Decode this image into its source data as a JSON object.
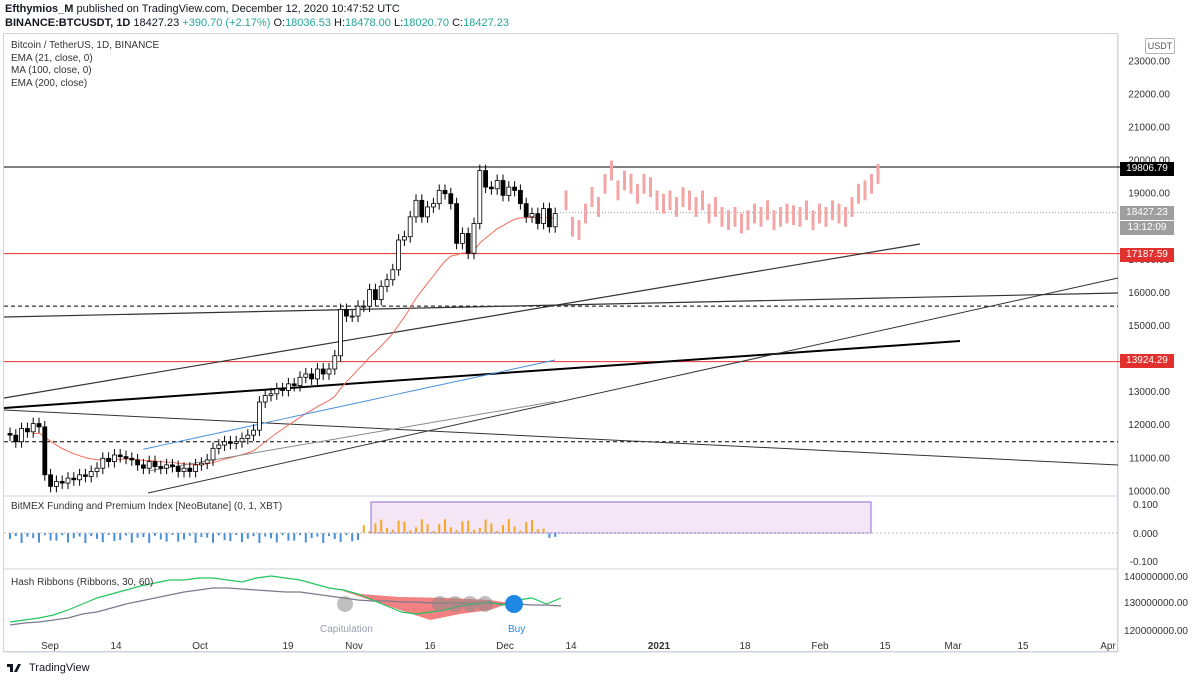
{
  "header": {
    "line1_user": "Efthymios_M",
    "line1_rest": " published on TradingView.com, December 12, 2020 10:47:52 UTC",
    "line2_symbol": "BINANCE:BTCUSDT, 1D",
    "line2_price": "18427.23",
    "line2_change": "+390.70 (+2.17%)",
    "o_label": "O:",
    "o": "18036.53",
    "h_label": "H:",
    "h": "18478.00",
    "l_label": "L:",
    "l": "18020.70",
    "c_label": "C:",
    "c": "18427.23"
  },
  "legend": {
    "title": "Bitcoin / TetherUS, 1D, BINANCE",
    "ema21": "EMA (21, close, 0)",
    "ma100": "MA (100, close, 0)",
    "ema200": "EMA (200, close)"
  },
  "currency": "USDT",
  "price_tags": {
    "resistance": "19806.79",
    "last": "18427.23",
    "countdown": "13:12:09",
    "red_upper": "17187.59",
    "red_lower": "13924.29"
  },
  "panes": {
    "bitmex": "BitMEX Funding and Premium Index [NeoButane] (0, 1, XBT)",
    "hash": "Hash Ribbons (Ribbons, 30, 60)",
    "capitulation": "Capitulation",
    "buy": "Buy"
  },
  "footer": {
    "brand": "TradingView"
  },
  "colors": {
    "up": "#ffffff",
    "down": "#000000",
    "projection": "#f4a6a6",
    "ema21": "#f36c5b",
    "ma100": "#4a90d9",
    "ema200": "#8c8c8c",
    "red_level": "#e0312e",
    "hash_fast": "#22c55e",
    "hash_slow": "#7a7a8c",
    "fund_pos": "#f5a623",
    "fund_neg": "#4a90d9",
    "buy_dot": "#1e88e5"
  },
  "chart_data": [
    {
      "type": "candlestick",
      "title": "Bitcoin / TetherUS, 1D, BINANCE",
      "x_ticks": [
        "Sep",
        "14",
        "Oct",
        "19",
        "Nov",
        "16",
        "Dec",
        "14",
        "2021",
        "18",
        "Feb",
        "15",
        "Mar",
        "15",
        "Apr"
      ],
      "y_ticks": [
        10000,
        11000,
        12000,
        13000,
        14000,
        15000,
        16000,
        17000,
        18000,
        19000,
        20000,
        21000,
        22000,
        23000
      ],
      "ylim": [
        9950,
        23800
      ],
      "current": {
        "open": 18036.53,
        "high": 18478.0,
        "low": 18020.7,
        "close": 18427.23
      },
      "levels": {
        "resistance": 19806.79,
        "red_upper": 17187.59,
        "red_lower": 13924.29,
        "dashed_upper": 15600,
        "dashed_lower": 11500
      }
    },
    {
      "type": "bar",
      "title": "BitMEX Funding and Premium Index [NeoButane] (0, 1, XBT)",
      "y_ticks": [
        "0.100",
        "0.000",
        "-0.100"
      ]
    },
    {
      "type": "line",
      "title": "Hash Ribbons (Ribbons, 30, 60)",
      "y_ticks": [
        "140000000.00",
        "130000000.00",
        "120000000.00"
      ],
      "annotations": [
        "Capitulation",
        "Buy"
      ]
    }
  ]
}
